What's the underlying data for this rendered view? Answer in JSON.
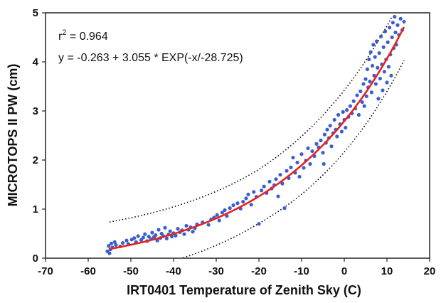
{
  "chart_data": {
    "type": "scatter",
    "xlabel": "IRT0401 Temperature of Zenith Sky (C)",
    "ylabel": "MICROTOPS II PW (cm)",
    "xlim": [
      -70,
      20
    ],
    "ylim": [
      0,
      5
    ],
    "xticks": [
      "-70",
      "-60",
      "-50",
      "-40",
      "-30",
      "-20",
      "-10",
      "0",
      "10",
      "20"
    ],
    "yticks": [
      "0",
      "1",
      "2",
      "3",
      "4",
      "5"
    ],
    "annotations": {
      "r2_prefix": "r",
      "r2_sup": "2",
      "r2_value": " = 0.964",
      "equation": "y = -0.263 + 3.055 * EXP(-x/-28.725)"
    },
    "fit": {
      "a": -0.263,
      "b": 3.055,
      "c": -28.725,
      "x_range": [
        -55,
        14
      ],
      "color": "#e8231f"
    },
    "bounds_offset": 0.55,
    "bounds_x_range": [
      -55,
      14
    ],
    "bounds_color": "#000000",
    "point_color": "#3a5fcd",
    "points": [
      [
        -55.5,
        0.14
      ],
      [
        -55.2,
        0.25
      ],
      [
        -54.8,
        0.18
      ],
      [
        -54.6,
        0.3
      ],
      [
        -55.0,
        0.1
      ],
      [
        -54.3,
        0.22
      ],
      [
        -53.8,
        0.33
      ],
      [
        -53.5,
        0.27
      ],
      [
        -52.5,
        0.24
      ],
      [
        -51.9,
        0.31
      ],
      [
        -51.0,
        0.36
      ],
      [
        -50.6,
        0.29
      ],
      [
        -49.8,
        0.38
      ],
      [
        -49.2,
        0.41
      ],
      [
        -48.8,
        0.33
      ],
      [
        -48.3,
        0.45
      ],
      [
        -47.6,
        0.37
      ],
      [
        -47.1,
        0.42
      ],
      [
        -46.7,
        0.49
      ],
      [
        -46.2,
        0.35
      ],
      [
        -45.8,
        0.44
      ],
      [
        -45.3,
        0.39
      ],
      [
        -45.0,
        0.52
      ],
      [
        -44.6,
        0.43
      ],
      [
        -44.2,
        0.47
      ],
      [
        -43.8,
        0.36
      ],
      [
        -43.5,
        0.58
      ],
      [
        -43.1,
        0.41
      ],
      [
        -42.8,
        0.5
      ],
      [
        -42.4,
        0.45
      ],
      [
        -42.0,
        0.62
      ],
      [
        -41.6,
        0.4
      ],
      [
        -41.2,
        0.48
      ],
      [
        -40.8,
        0.55
      ],
      [
        -40.4,
        0.44
      ],
      [
        -40.0,
        0.51
      ],
      [
        -39.5,
        0.46
      ],
      [
        -39.0,
        0.6
      ],
      [
        -38.5,
        0.53
      ],
      [
        -38.0,
        0.57
      ],
      [
        -37.5,
        0.49
      ],
      [
        -37.0,
        0.66
      ],
      [
        -36.5,
        0.58
      ],
      [
        -36.0,
        0.63
      ],
      [
        -35.5,
        0.54
      ],
      [
        -35.0,
        0.61
      ],
      [
        -34.5,
        0.69
      ],
      [
        -33.2,
        0.73
      ],
      [
        -31.8,
        0.68
      ],
      [
        -31.2,
        0.79
      ],
      [
        -30.5,
        0.83
      ],
      [
        -29.8,
        0.88
      ],
      [
        -29.3,
        0.77
      ],
      [
        -28.6,
        0.93
      ],
      [
        -28.0,
        0.98
      ],
      [
        -27.5,
        0.86
      ],
      [
        -26.8,
        1.02
      ],
      [
        -26.0,
        1.08
      ],
      [
        -25.0,
        1.12
      ],
      [
        -24.3,
        1.01
      ],
      [
        -23.7,
        1.15
      ],
      [
        -23.0,
        1.22
      ],
      [
        -22.5,
        1.3
      ],
      [
        -21.8,
        1.09
      ],
      [
        -21.2,
        1.35
      ],
      [
        -20.6,
        1.25
      ],
      [
        -20.0,
        0.7
      ],
      [
        -19.4,
        1.38
      ],
      [
        -18.8,
        1.46
      ],
      [
        -18.2,
        1.33
      ],
      [
        -17.5,
        1.56
      ],
      [
        -17.0,
        1.42
      ],
      [
        -16.4,
        1.49
      ],
      [
        -16.0,
        1.61
      ],
      [
        -15.5,
        1.26
      ],
      [
        -15.0,
        1.7
      ],
      [
        -14.5,
        1.52
      ],
      [
        -14.0,
        1.02
      ],
      [
        -13.5,
        1.78
      ],
      [
        -13.0,
        1.63
      ],
      [
        -12.5,
        1.85
      ],
      [
        -12.0,
        2.05
      ],
      [
        -11.5,
        1.74
      ],
      [
        -11.0,
        1.95
      ],
      [
        -10.5,
        1.66
      ],
      [
        -10.0,
        2.12
      ],
      [
        -9.5,
        1.84
      ],
      [
        -9.0,
        1.99
      ],
      [
        -8.5,
        2.24
      ],
      [
        -8.0,
        1.92
      ],
      [
        -7.5,
        2.18
      ],
      [
        -7.0,
        2.08
      ],
      [
        -6.5,
        2.33
      ],
      [
        -6.0,
        2.26
      ],
      [
        -5.5,
        2.4
      ],
      [
        -5.0,
        2.15
      ],
      [
        -4.8,
        1.92
      ],
      [
        -4.6,
        2.52
      ],
      [
        -4.3,
        2.35
      ],
      [
        -4.0,
        2.62
      ],
      [
        -3.6,
        2.45
      ],
      [
        -3.3,
        2.7
      ],
      [
        -3.0,
        2.28
      ],
      [
        -2.6,
        2.55
      ],
      [
        -2.3,
        2.82
      ],
      [
        -2.0,
        2.62
      ],
      [
        -1.7,
        2.48
      ],
      [
        -1.4,
        2.92
      ],
      [
        -1.0,
        2.73
      ],
      [
        -0.6,
        2.58
      ],
      [
        -0.3,
        2.98
      ],
      [
        0.0,
        2.82
      ],
      [
        0.3,
        2.66
      ],
      [
        0.6,
        3.02
      ],
      [
        1.0,
        2.88
      ],
      [
        1.4,
        3.1
      ],
      [
        1.8,
        2.95
      ],
      [
        2.2,
        3.2
      ],
      [
        2.6,
        3.05
      ],
      [
        3.0,
        3.32
      ],
      [
        3.4,
        2.92
      ],
      [
        3.8,
        3.4
      ],
      [
        4.2,
        3.18
      ],
      [
        4.5,
        3.55
      ],
      [
        4.7,
        3.1
      ],
      [
        5.0,
        3.65
      ],
      [
        5.2,
        3.3
      ],
      [
        5.4,
        3.85
      ],
      [
        5.6,
        3.48
      ],
      [
        5.8,
        4.05
      ],
      [
        6.0,
        3.6
      ],
      [
        6.2,
        4.2
      ],
      [
        6.4,
        3.38
      ],
      [
        6.6,
        3.92
      ],
      [
        6.8,
        4.35
      ],
      [
        7.0,
        3.72
      ],
      [
        7.2,
        4.1
      ],
      [
        7.4,
        3.55
      ],
      [
        7.6,
        4.42
      ],
      [
        7.8,
        3.88
      ],
      [
        8.0,
        3.25
      ],
      [
        8.2,
        4.18
      ],
      [
        8.4,
        3.66
      ],
      [
        8.6,
        4.52
      ],
      [
        8.8,
        3.95
      ],
      [
        9.0,
        3.42
      ],
      [
        9.2,
        4.3
      ],
      [
        9.4,
        3.8
      ],
      [
        9.6,
        4.62
      ],
      [
        9.8,
        4.05
      ],
      [
        10.0,
        3.58
      ],
      [
        10.2,
        4.4
      ],
      [
        10.4,
        3.9
      ],
      [
        10.6,
        4.7
      ],
      [
        10.8,
        4.15
      ],
      [
        11.0,
        3.72
      ],
      [
        11.2,
        4.5
      ],
      [
        11.4,
        4.8
      ],
      [
        11.6,
        4.28
      ],
      [
        11.8,
        4.92
      ],
      [
        12.0,
        4.6
      ],
      [
        12.2,
        4.35
      ],
      [
        12.5,
        4.75
      ],
      [
        12.8,
        4.55
      ],
      [
        13.2,
        4.88
      ],
      [
        13.6,
        4.65
      ],
      [
        14.0,
        4.82
      ]
    ]
  }
}
